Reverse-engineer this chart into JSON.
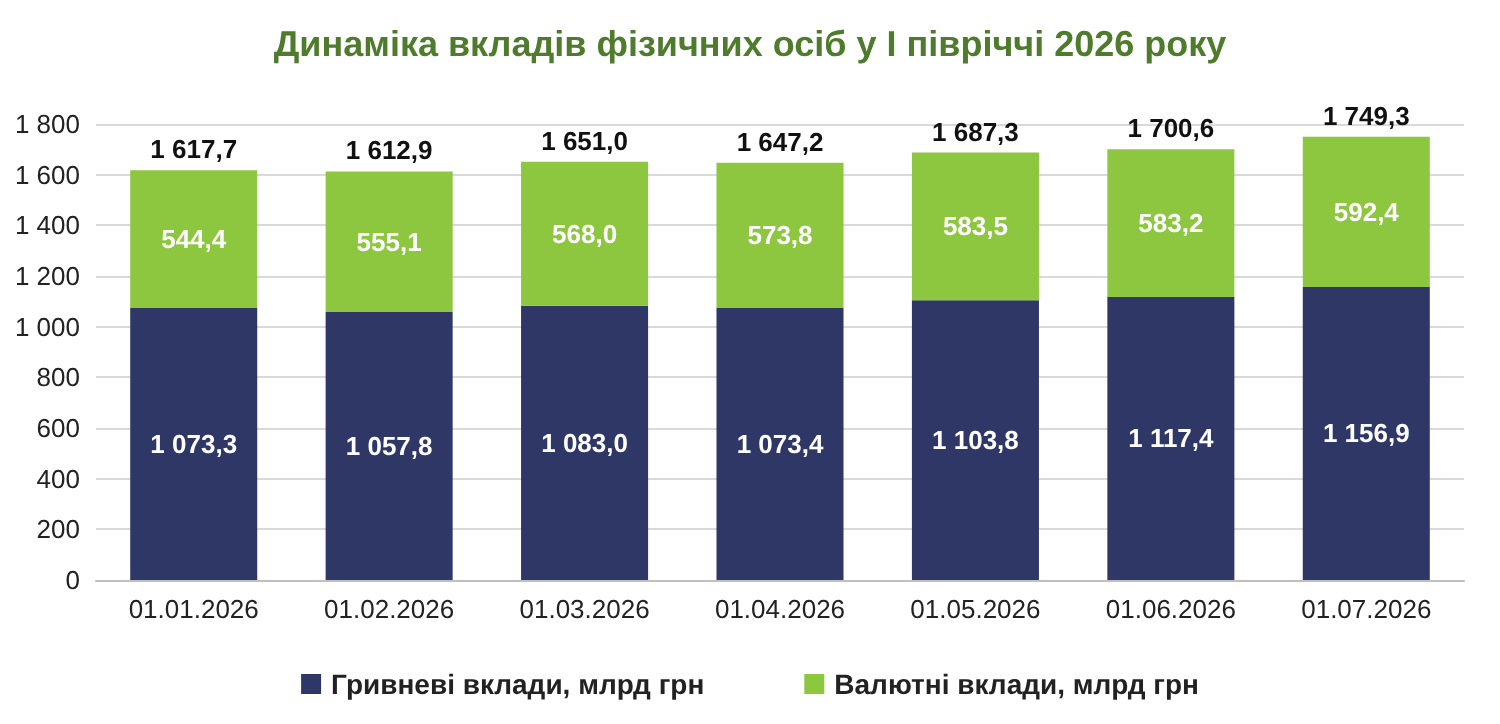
{
  "chart_data": {
    "type": "bar",
    "title": "Динаміка вкладів фізичних осіб у І півріччі 2026 року",
    "categories": [
      "01.01.2026",
      "01.02.2026",
      "01.03.2026",
      "01.04.2026",
      "01.05.2026",
      "01.06.2026",
      "01.07.2026"
    ],
    "stacked": true,
    "series": [
      {
        "name": "Гривневі вклади, млрд грн",
        "color": "#2e3766",
        "values": [
          1073.3,
          1057.8,
          1083.0,
          1073.4,
          1103.8,
          1117.4,
          1156.9
        ],
        "value_labels": [
          "1 073,3",
          "1 057,8",
          "1 083,0",
          "1 073,4",
          "1 103,8",
          "1 117,4",
          "1 156,9"
        ]
      },
      {
        "name": "Валютні вклади, млрд грн",
        "color": "#8dc63f",
        "values": [
          544.4,
          555.1,
          568.0,
          573.8,
          583.5,
          583.2,
          592.4
        ],
        "value_labels": [
          "544,4",
          "555,1",
          "568,0",
          "573,8",
          "583,5",
          "583,2",
          "592,4"
        ]
      }
    ],
    "totals": [
      "1 617,7",
      "1 612,9",
      "1 651,0",
      "1 647,2",
      "1 687,3",
      "1 700,6",
      "1 749,3"
    ],
    "ylim": [
      0,
      1800
    ],
    "yticks": [
      0,
      200,
      400,
      600,
      800,
      {
        "value": 1000,
        "label": "1 000"
      },
      {
        "value": 1200,
        "label": "1 200"
      },
      {
        "value": 1400,
        "label": "1 400"
      },
      {
        "value": 1600,
        "label": "1 600"
      },
      {
        "value": 1800,
        "label": "1 800"
      }
    ],
    "grid": "y",
    "legend": "bottom"
  }
}
